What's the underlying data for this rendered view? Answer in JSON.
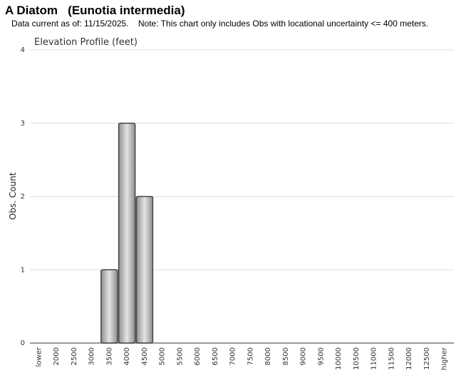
{
  "header": {
    "title": "A Diatom   (Eunotia intermedia)",
    "subtitle": "Data current as of: 11/15/2025.    Note: This chart only includes Obs with locational uncertainty <= 400 meters."
  },
  "chart_data": {
    "type": "bar",
    "title": "Elevation Profile (feet)",
    "xlabel": "",
    "ylabel": "Obs. Count",
    "categories": [
      "lower",
      "2000",
      "2500",
      "3000",
      "3500",
      "4000",
      "4500",
      "5000",
      "5500",
      "6000",
      "6500",
      "7000",
      "7500",
      "8000",
      "8500",
      "9000",
      "9500",
      "10000",
      "10500",
      "11000",
      "11500",
      "12000",
      "12500",
      "higher"
    ],
    "values": [
      0,
      0,
      0,
      0,
      1,
      3,
      2,
      0,
      0,
      0,
      0,
      0,
      0,
      0,
      0,
      0,
      0,
      0,
      0,
      0,
      0,
      0,
      0,
      0
    ],
    "ylim": [
      0,
      4
    ],
    "yticks": [
      0,
      1,
      2,
      3,
      4
    ],
    "grid": true,
    "colors": {
      "bar_fill_edge": "#8f8f8f",
      "bar_fill_center": "#e4e4e4",
      "bar_stroke": "#444444",
      "grid": "#dddddd",
      "axis": "#333333"
    }
  }
}
